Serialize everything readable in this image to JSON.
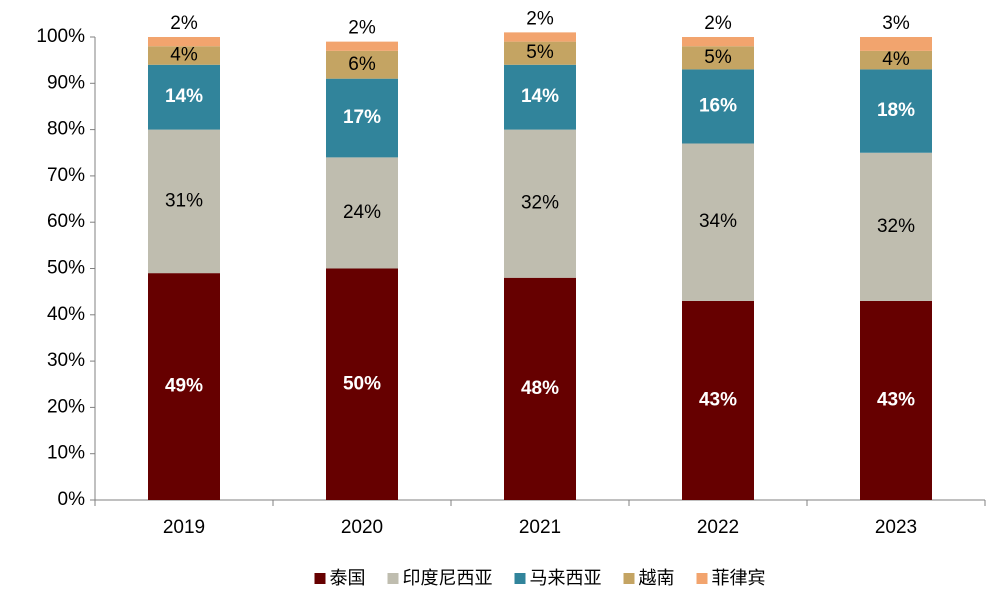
{
  "chart_data": {
    "type": "stacked_bar",
    "categories": [
      "2019",
      "2020",
      "2021",
      "2022",
      "2023"
    ],
    "series": [
      {
        "name": "泰国",
        "color": "#660000",
        "values": [
          49,
          50,
          48,
          43,
          43
        ],
        "value_labels": [
          "49%",
          "50%",
          "48%",
          "43%",
          "43%"
        ]
      },
      {
        "name": "印度尼西亚",
        "color": "#bfbdaf",
        "values": [
          31,
          24,
          32,
          34,
          32
        ],
        "value_labels": [
          "31%",
          "24%",
          "32%",
          "34%",
          "32%"
        ]
      },
      {
        "name": "马来西亚",
        "color": "#31849b",
        "values": [
          14,
          17,
          14,
          16,
          18
        ],
        "value_labels": [
          "14%",
          "17%",
          "14%",
          "16%",
          "18%"
        ]
      },
      {
        "name": "越南",
        "color": "#c4a463",
        "values": [
          4,
          6,
          5,
          5,
          4
        ],
        "value_labels": [
          "4%",
          "6%",
          "5%",
          "5%",
          "4%"
        ]
      },
      {
        "name": "菲律宾",
        "color": "#f2a46e",
        "values": [
          2,
          2,
          2,
          2,
          3
        ],
        "value_labels": [
          "2%",
          "2%",
          "2%",
          "2%",
          "3%"
        ]
      }
    ],
    "ylim": [
      0,
      100
    ],
    "yticks": [
      {
        "value": 0,
        "label": "0%"
      },
      {
        "value": 10,
        "label": "10%"
      },
      {
        "value": 20,
        "label": "20%"
      },
      {
        "value": 30,
        "label": "30%"
      },
      {
        "value": 40,
        "label": "40%"
      },
      {
        "value": 50,
        "label": "50%"
      },
      {
        "value": 60,
        "label": "60%"
      },
      {
        "value": 70,
        "label": "70%"
      },
      {
        "value": 80,
        "label": "80%"
      },
      {
        "value": 90,
        "label": "90%"
      },
      {
        "value": 100,
        "label": "100%"
      }
    ],
    "grid": false,
    "legend": "bottom"
  }
}
